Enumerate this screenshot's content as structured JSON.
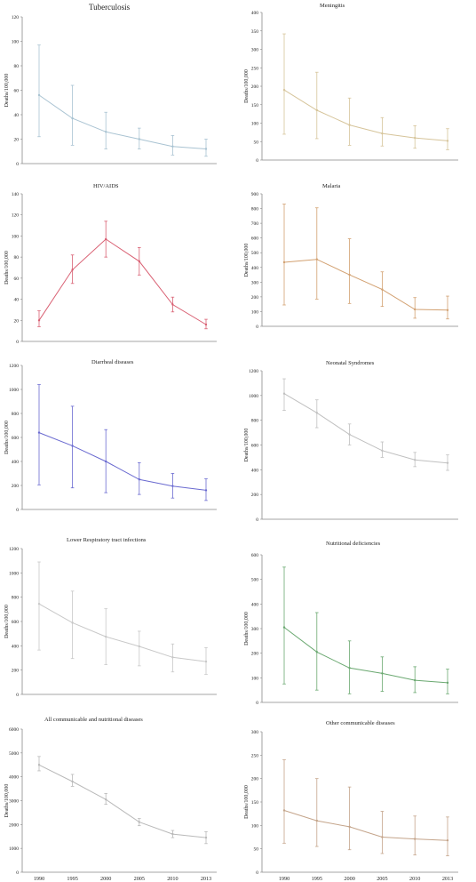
{
  "x_categories": [
    "1990",
    "1995",
    "2000",
    "2005",
    "2010",
    "2013"
  ],
  "chart_data": [
    {
      "type": "line",
      "title": "Tuberculosis",
      "ylabel": "Deaths/100,000",
      "color": "#a9c3d2",
      "ylim": [
        0,
        120
      ],
      "yticks": [
        0,
        20,
        40,
        60,
        80,
        100,
        120
      ],
      "categories": [
        "1990",
        "1995",
        "2000",
        "2005",
        "2010",
        "2013"
      ],
      "values": [
        56,
        37,
        26,
        20,
        14,
        12
      ],
      "lower": [
        22,
        15,
        12,
        12,
        7,
        6
      ],
      "upper": [
        97,
        64,
        42,
        29,
        23,
        20
      ]
    },
    {
      "type": "line",
      "title": "Meningitis",
      "ylabel": "Deaths/100,000",
      "color": "#d6c49a",
      "ylim": [
        0,
        400
      ],
      "yticks": [
        0,
        50,
        100,
        150,
        200,
        250,
        300,
        350,
        400
      ],
      "categories": [
        "1990",
        "1995",
        "2000",
        "2005",
        "2010",
        "2013"
      ],
      "values": [
        190,
        135,
        95,
        72,
        60,
        52
      ],
      "lower": [
        70,
        58,
        40,
        38,
        32,
        28
      ],
      "upper": [
        342,
        238,
        168,
        115,
        93,
        85
      ]
    },
    {
      "type": "line",
      "title": "HIV/AIDS",
      "ylabel": "Deaths/100,000",
      "color": "#d96073",
      "ylim": [
        0,
        140
      ],
      "yticks": [
        0,
        20,
        40,
        60,
        80,
        100,
        120,
        140
      ],
      "categories": [
        "1990",
        "1995",
        "2000",
        "2005",
        "2010",
        "2013"
      ],
      "values": [
        20,
        68,
        97,
        76,
        35,
        16
      ],
      "lower": [
        14,
        55,
        80,
        63,
        28,
        12
      ],
      "upper": [
        29,
        82,
        114,
        89,
        42,
        21
      ]
    },
    {
      "type": "line",
      "title": "Malaria",
      "ylabel": "Deaths/100,000",
      "color": "#d2a070",
      "ylim": [
        0,
        900
      ],
      "yticks": [
        0,
        100,
        200,
        300,
        400,
        500,
        600,
        700,
        800,
        900
      ],
      "categories": [
        "1990",
        "1995",
        "2000",
        "2005",
        "2010",
        "2013"
      ],
      "values": [
        435,
        455,
        350,
        250,
        115,
        110
      ],
      "lower": [
        145,
        185,
        155,
        135,
        55,
        50
      ],
      "upper": [
        830,
        805,
        595,
        370,
        195,
        205
      ]
    },
    {
      "type": "line",
      "title": "Diarrheal diseases",
      "ylabel": "Deaths/100,000",
      "color": "#6a6ad0",
      "ylim": [
        0,
        1200
      ],
      "yticks": [
        0,
        200,
        400,
        600,
        800,
        1000,
        1200
      ],
      "categories": [
        "1990",
        "1995",
        "2000",
        "2005",
        "2010",
        "2013"
      ],
      "values": [
        640,
        530,
        400,
        250,
        195,
        160
      ],
      "lower": [
        205,
        180,
        140,
        125,
        95,
        75
      ],
      "upper": [
        1040,
        860,
        665,
        390,
        300,
        255
      ]
    },
    {
      "type": "line",
      "title": "Neonatal Syndromes",
      "ylabel": "Deaths/100,000",
      "color": "#c0c0c0",
      "ylim": [
        0,
        1200
      ],
      "yticks": [
        0,
        200,
        400,
        600,
        800,
        1000,
        1200
      ],
      "categories": [
        "1990",
        "1995",
        "2000",
        "2005",
        "2010",
        "2013"
      ],
      "values": [
        1015,
        860,
        685,
        555,
        480,
        455
      ],
      "lower": [
        880,
        740,
        600,
        500,
        425,
        395
      ],
      "upper": [
        1135,
        965,
        770,
        625,
        540,
        520
      ]
    },
    {
      "type": "line",
      "title": "Lower Respiratory tract infections",
      "ylabel": "Deaths/100,000",
      "color": "#c8c8c8",
      "ylim": [
        0,
        1200
      ],
      "yticks": [
        0,
        200,
        400,
        600,
        800,
        1000,
        1200
      ],
      "categories": [
        "1990",
        "1995",
        "2000",
        "2005",
        "2010",
        "2013"
      ],
      "values": [
        745,
        590,
        475,
        395,
        305,
        270
      ],
      "lower": [
        365,
        295,
        245,
        235,
        185,
        165
      ],
      "upper": [
        1090,
        850,
        705,
        520,
        415,
        385
      ]
    },
    {
      "type": "line",
      "title": "Nutritional  deficiencies",
      "ylabel": "Deaths/100,000",
      "color": "#6aa870",
      "ylim": [
        0,
        600
      ],
      "yticks": [
        0,
        100,
        200,
        300,
        400,
        500,
        600
      ],
      "categories": [
        "1990",
        "1995",
        "2000",
        "2005",
        "2010",
        "2013"
      ],
      "values": [
        305,
        205,
        140,
        118,
        90,
        80
      ],
      "lower": [
        75,
        50,
        35,
        45,
        40,
        35
      ],
      "upper": [
        550,
        365,
        250,
        185,
        145,
        135
      ]
    },
    {
      "type": "line",
      "title": "All communicable and nutritional diseases",
      "ylabel": "Deaths/100,000",
      "color": "#b9b9b9",
      "ylim": [
        0,
        6000
      ],
      "yticks": [
        0,
        1000,
        2000,
        3000,
        4000,
        5000,
        6000
      ],
      "categories": [
        "1990",
        "1995",
        "2000",
        "2005",
        "2010",
        "2013"
      ],
      "values": [
        4500,
        3800,
        3050,
        2100,
        1600,
        1450
      ],
      "lower": [
        4250,
        3600,
        2850,
        1950,
        1450,
        1200
      ],
      "upper": [
        4850,
        4100,
        3300,
        2250,
        1750,
        1700
      ]
    },
    {
      "type": "line",
      "title": "Other communicable diseases",
      "ylabel": "Deaths/100,000",
      "color": "#c4a48a",
      "ylim": [
        0,
        300
      ],
      "yticks": [
        0,
        50,
        100,
        150,
        200,
        250,
        300
      ],
      "categories": [
        "1990",
        "1995",
        "2000",
        "2005",
        "2010",
        "2013"
      ],
      "values": [
        132,
        110,
        97,
        75,
        71,
        68
      ],
      "lower": [
        62,
        55,
        48,
        40,
        37,
        35
      ],
      "upper": [
        240,
        200,
        182,
        130,
        120,
        118
      ]
    }
  ]
}
